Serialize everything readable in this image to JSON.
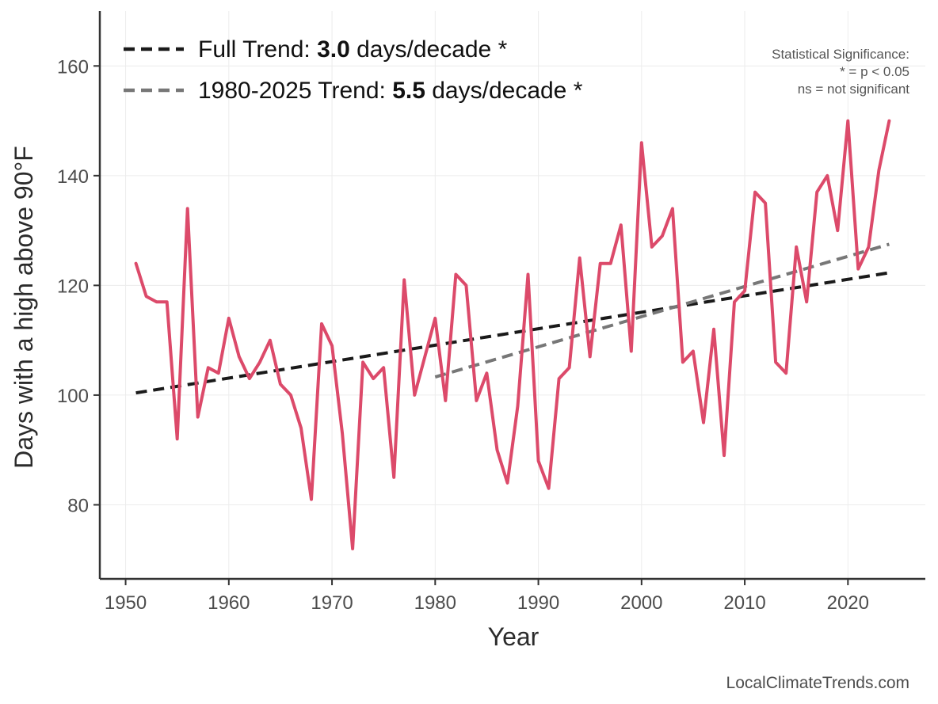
{
  "chart_data": {
    "type": "line",
    "xlabel": "Year",
    "ylabel": "Days with a high above 90°F",
    "xlim": [
      1947.5,
      2027.5
    ],
    "ylim": [
      66.5,
      170
    ],
    "x_ticks": [
      1950,
      1960,
      1970,
      1980,
      1990,
      2000,
      2010,
      2020
    ],
    "y_ticks": [
      80,
      100,
      120,
      140,
      160
    ],
    "grid": true,
    "legend_position": "top-left",
    "series": [
      {
        "color": "#dc4a6a",
        "x": [
          1951,
          1952,
          1953,
          1954,
          1955,
          1956,
          1957,
          1958,
          1959,
          1960,
          1961,
          1962,
          1963,
          1964,
          1965,
          1966,
          1967,
          1968,
          1969,
          1970,
          1971,
          1972,
          1973,
          1974,
          1975,
          1976,
          1977,
          1978,
          1979,
          1980,
          1981,
          1982,
          1983,
          1984,
          1985,
          1986,
          1987,
          1988,
          1989,
          1990,
          1991,
          1992,
          1993,
          1994,
          1995,
          1996,
          1997,
          1998,
          1999,
          2000,
          2001,
          2002,
          2003,
          2004,
          2005,
          2006,
          2007,
          2008,
          2009,
          2010,
          2011,
          2012,
          2013,
          2014,
          2015,
          2016,
          2017,
          2018,
          2019,
          2020,
          2021,
          2022,
          2023,
          2024
        ],
        "values": [
          124,
          118,
          117,
          117,
          92,
          134,
          96,
          105,
          104,
          114,
          107,
          103,
          106,
          110,
          102,
          100,
          94,
          81,
          113,
          109,
          93,
          72,
          106,
          103,
          105,
          85,
          121,
          100,
          107,
          114,
          99,
          122,
          120,
          99,
          104,
          90,
          84,
          98,
          122,
          88,
          83,
          103,
          105,
          125,
          107,
          124,
          124,
          131,
          108,
          146,
          127,
          129,
          134,
          106,
          108,
          95,
          112,
          89,
          117,
          119,
          137,
          135,
          106,
          104,
          127,
          117,
          137,
          140,
          130,
          150,
          123,
          127,
          141,
          150
        ]
      }
    ],
    "trends": [
      {
        "label_prefix": "Full Trend: ",
        "value": "3.0",
        "label_suffix": " days/decade *",
        "color": "#1a1a1a",
        "x": [
          1951,
          2024
        ],
        "values": [
          100.4,
          122.3
        ]
      },
      {
        "label_prefix": "1980-2025 Trend: ",
        "value": "5.5",
        "label_suffix": " days/decade *",
        "color": "#777777",
        "x": [
          1980,
          2024
        ],
        "values": [
          103.3,
          127.5
        ]
      }
    ],
    "significance_note": [
      "Statistical Significance:",
      "* = p < 0.05",
      "ns = not significant"
    ],
    "credit": "LocalClimateTrends.com"
  }
}
